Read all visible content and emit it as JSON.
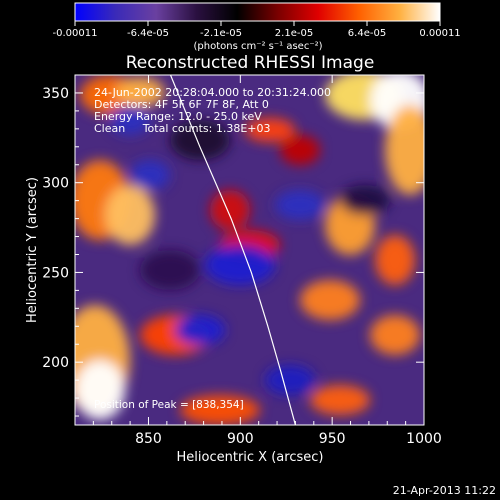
{
  "figure": {
    "title": "Reconstructed RHESSI Image",
    "footer_timestamp": "21-Apr-2013 11:22"
  },
  "colorbar": {
    "tick_labels": [
      "-0.00011",
      "-6.4e-05",
      "-2.1e-05",
      "2.1e-05",
      "6.4e-05",
      "0.00011"
    ],
    "units_label": "(photons cm⁻² s⁻¹ asec⁻²)",
    "range": [
      -0.00011,
      0.00011
    ],
    "colormap_stops": [
      "#0000ff",
      "#3a2ab8",
      "#6a40a0",
      "#2a1040",
      "#000000",
      "#7a0000",
      "#e00000",
      "#ff6000",
      "#ffb040",
      "#ffffff"
    ]
  },
  "info_lines": [
    "24-Jun-2002 20:28:04.000 to 20:31:24.000",
    "Detectors: 4F 5F 6F 7F 8F, Att 0",
    "Energy Range: 12.0 - 25.0 keV",
    "Clean     Total counts: 1.38E+03"
  ],
  "peak_label": "Position of Peak = [838,354]",
  "chart_data": {
    "type": "heatmap",
    "title": "Reconstructed RHESSI Image",
    "xlabel": "Heliocentric X (arcsec)",
    "ylabel": "Heliocentric Y (arcsec)",
    "xlim": [
      810,
      1000
    ],
    "ylim": [
      165,
      360
    ],
    "xticks": [
      850,
      900,
      950,
      1000
    ],
    "yticks": [
      200,
      250,
      300,
      350
    ],
    "value_range": [
      -0.00011,
      0.00011
    ],
    "peak_position": [
      838,
      354
    ],
    "limb_curve": [
      [
        860,
        365
      ],
      [
        878,
        320
      ],
      [
        895,
        280
      ],
      [
        906,
        250
      ],
      [
        915,
        220
      ],
      [
        922,
        195
      ],
      [
        930,
        165
      ]
    ]
  }
}
